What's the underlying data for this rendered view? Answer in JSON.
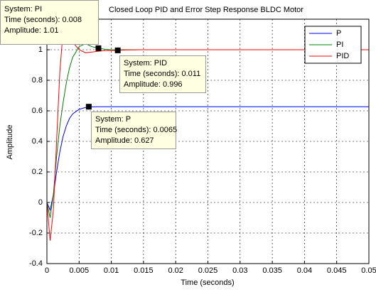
{
  "chart_data": {
    "type": "line",
    "title": "Closed Loop PID  and Error Step Response BLDC Motor",
    "x_label": "Time (seconds)",
    "y_label": "Amplitude",
    "x": [
      0,
      0.0005,
      0.001,
      0.0015,
      0.002,
      0.0025,
      0.003,
      0.0035,
      0.004,
      0.005,
      0.006,
      0.007,
      0.008,
      0.009,
      0.01,
      0.011,
      0.012,
      0.015,
      0.02,
      0.025,
      0.03,
      0.035,
      0.04,
      0.045,
      0.05
    ],
    "series": [
      {
        "name": "P",
        "color": "#0000ff",
        "values": [
          0,
          -0.05,
          0.05,
          0.2,
          0.33,
          0.43,
          0.5,
          0.55,
          0.58,
          0.61,
          0.622,
          0.626,
          0.627,
          0.627,
          0.627,
          0.627,
          0.627,
          0.627,
          0.627,
          0.627,
          0.627,
          0.627,
          0.627,
          0.627,
          0.627
        ]
      },
      {
        "name": "PI",
        "color": "#008000",
        "values": [
          0,
          -0.1,
          0.05,
          0.3,
          0.5,
          0.65,
          0.78,
          0.88,
          0.95,
          1.02,
          1.04,
          1.02,
          1.01,
          1.003,
          1.0,
          0.999,
          1.0,
          1.0,
          1.0,
          1.0,
          1.0,
          1.0,
          1.0,
          1.0,
          1.0
        ]
      },
      {
        "name": "PID",
        "color": "#ff0000",
        "values": [
          0,
          -0.25,
          -0.05,
          0.4,
          0.85,
          1.12,
          1.2,
          1.15,
          1.05,
          1.0,
          0.98,
          0.985,
          0.99,
          0.994,
          0.995,
          0.996,
          0.998,
          1.0,
          1.0,
          1.0,
          1.0,
          1.0,
          1.0,
          1.0,
          1.0
        ]
      }
    ],
    "xlim": [
      0,
      0.05
    ],
    "ylim": [
      -0.4,
      1.2
    ],
    "xticks": [
      0,
      0.005,
      0.01,
      0.015,
      0.02,
      0.025,
      0.03,
      0.035,
      0.04,
      0.045,
      0.05
    ],
    "yticks": [
      -0.4,
      -0.2,
      0,
      0.2,
      0.4,
      0.6,
      0.8,
      1
    ],
    "grid": true,
    "legend": "top-right",
    "annotations": [
      {
        "lines": [
          "System: PI",
          "Time (seconds): 0.008",
          "Amplitude: 1.01"
        ],
        "x": 0.008,
        "y": 1.01
      },
      {
        "lines": [
          "System: PID",
          "Time (seconds): 0.011",
          "Amplitude: 0.996"
        ],
        "x": 0.011,
        "y": 0.996
      },
      {
        "lines": [
          "System: P",
          "Time (seconds): 0.0065",
          "Amplitude: 0.627"
        ],
        "x": 0.0065,
        "y": 0.627
      }
    ]
  }
}
